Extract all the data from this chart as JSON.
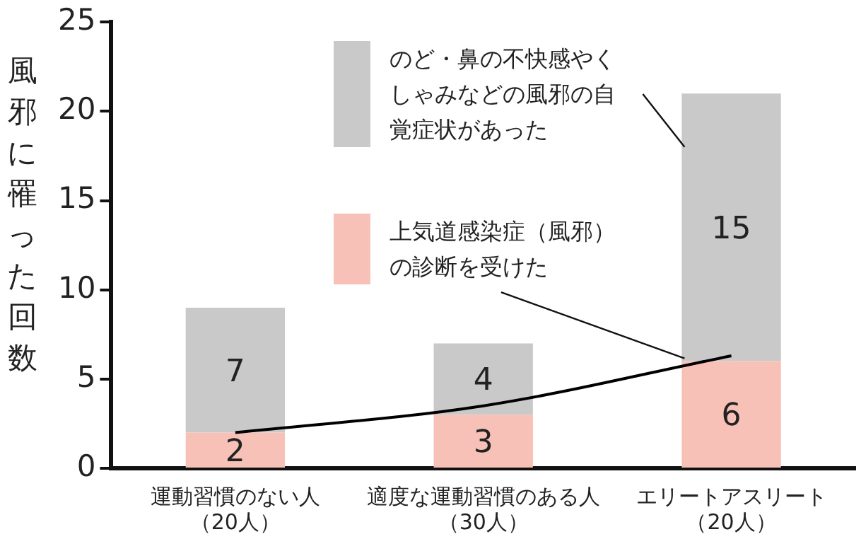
{
  "chart_data": {
    "type": "bar",
    "stacked": true,
    "ylabel": "風邪に罹った回数",
    "categories": [
      "運動習慣のない人（20人）",
      "適度な運動習慣のある人（30人）",
      "エリートアスリート（20人）"
    ],
    "series": [
      {
        "name": "上気道感染症（風邪）の診断を受けた",
        "color": "#f7c1b8",
        "values": [
          2,
          3,
          6
        ],
        "value_labels": [
          "2",
          "3",
          "6"
        ]
      },
      {
        "name": "のど・鼻の不快感やくしゃみなどの風邪の自覚症状があった",
        "color": "#c8c9c8",
        "values": [
          7,
          4,
          15
        ],
        "value_labels": [
          "7",
          "4",
          "15"
        ]
      },
      {
        "type": "line",
        "color": "#000000",
        "values": [
          2.0,
          3.5,
          6.3
        ]
      }
    ],
    "ylim": [
      0,
      25
    ],
    "yticks": [
      0,
      5,
      10,
      15,
      20,
      25
    ],
    "grid": false,
    "legend": "top right",
    "marker": "none",
    "line_style": "solid"
  }
}
